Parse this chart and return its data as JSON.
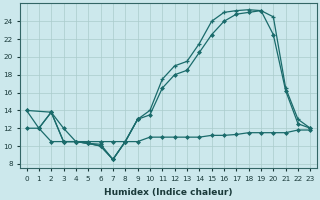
{
  "xlabel": "Humidex (Indice chaleur)",
  "bg_color": "#cce8ec",
  "grid_color": "#aacccc",
  "line_color": "#1a6b6b",
  "xlim": [
    -0.5,
    23.5
  ],
  "ylim": [
    7.5,
    26
  ],
  "yticks": [
    8,
    10,
    12,
    14,
    16,
    18,
    20,
    22,
    24
  ],
  "xticks": [
    0,
    1,
    2,
    3,
    4,
    5,
    6,
    7,
    8,
    9,
    10,
    11,
    12,
    13,
    14,
    15,
    16,
    17,
    18,
    19,
    20,
    21,
    22,
    23
  ],
  "line1_x": [
    0,
    1,
    2,
    3,
    4,
    5,
    6,
    7,
    8,
    9,
    10,
    11,
    12,
    13,
    14,
    15,
    16,
    17,
    18,
    19,
    20,
    21,
    22,
    23
  ],
  "line1_y": [
    14.0,
    12.0,
    13.8,
    10.5,
    10.5,
    10.3,
    10.0,
    8.5,
    10.5,
    13.0,
    14.0,
    17.5,
    19.0,
    19.5,
    21.5,
    24.0,
    25.0,
    25.2,
    25.3,
    25.2,
    24.5,
    16.5,
    13.0,
    12.0
  ],
  "line2_x": [
    0,
    2,
    3,
    4,
    5,
    6,
    7,
    8,
    9,
    10,
    11,
    12,
    13,
    14,
    15,
    16,
    17,
    18,
    19,
    20,
    21,
    22,
    23
  ],
  "line2_y": [
    14.0,
    13.8,
    10.5,
    10.5,
    10.3,
    10.0,
    8.5,
    10.5,
    13.0,
    13.5,
    16.5,
    18.0,
    18.5,
    20.5,
    22.5,
    24.0,
    24.8,
    25.0,
    25.2,
    22.5,
    16.2,
    12.5,
    12.0
  ],
  "line3_x": [
    0,
    1,
    2,
    3,
    4,
    5,
    6,
    7,
    8,
    9,
    10,
    11,
    12,
    13,
    14,
    15,
    16,
    17,
    18,
    19,
    20,
    21,
    22,
    23
  ],
  "line3_y": [
    12.0,
    12.0,
    10.5,
    10.5,
    10.5,
    10.5,
    10.5,
    10.5,
    10.5,
    10.5,
    11.0,
    11.0,
    11.0,
    11.0,
    11.0,
    11.2,
    11.2,
    11.3,
    11.5,
    11.5,
    11.5,
    11.5,
    11.8,
    11.8
  ],
  "line_bot_x": [
    1,
    2,
    3,
    4,
    5,
    6,
    7,
    8,
    9
  ],
  "line_bot_y": [
    12.0,
    13.8,
    12.0,
    10.5,
    10.3,
    10.2,
    8.5,
    10.5,
    13.0
  ]
}
